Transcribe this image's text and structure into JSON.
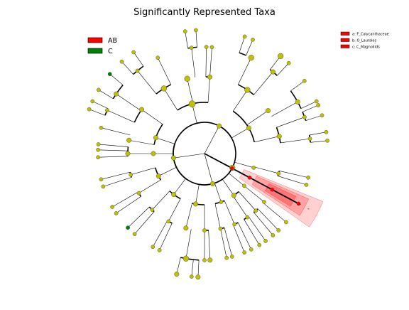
{
  "chart_data": {
    "type": "cladogram",
    "title": "Significantly Represented Taxa",
    "class_legend": [
      {
        "label": "AB",
        "color": "#ff0000"
      },
      {
        "label": "C",
        "color": "#008000"
      }
    ],
    "biomarker_legend": [
      {
        "key": "a",
        "label": "a: F_Calycanthaceae",
        "color": "#ff0000"
      },
      {
        "key": "b",
        "label": "b: O_Laurales",
        "color": "#ff0000"
      },
      {
        "key": "c",
        "label": "c: C_Magnoliids",
        "color": "#ff0000"
      }
    ],
    "highlight_labels": [
      "a",
      "b",
      "c"
    ],
    "colors": {
      "node_default": "#c0c000",
      "node_ab": "#ff0000",
      "node_c": "#008000",
      "highlight": "#ff0000"
    }
  }
}
